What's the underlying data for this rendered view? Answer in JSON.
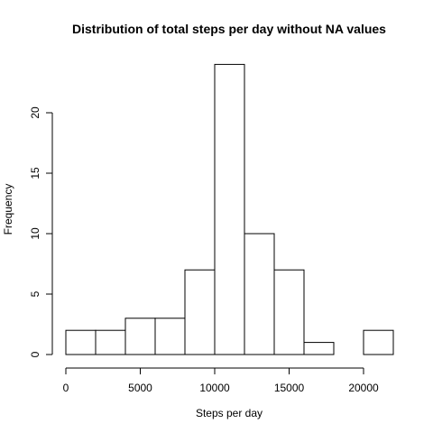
{
  "chart_data": {
    "type": "bar",
    "subtype": "histogram",
    "title": "Distribution of total steps per day without NA values",
    "xlabel": "Steps per day",
    "ylabel": "Frequency",
    "bins": [
      {
        "start": 0,
        "end": 2000,
        "count": 2
      },
      {
        "start": 2000,
        "end": 4000,
        "count": 2
      },
      {
        "start": 4000,
        "end": 6000,
        "count": 3
      },
      {
        "start": 6000,
        "end": 8000,
        "count": 3
      },
      {
        "start": 8000,
        "end": 10000,
        "count": 7
      },
      {
        "start": 10000,
        "end": 12000,
        "count": 24
      },
      {
        "start": 12000,
        "end": 14000,
        "count": 10
      },
      {
        "start": 14000,
        "end": 16000,
        "count": 7
      },
      {
        "start": 16000,
        "end": 18000,
        "count": 1
      },
      {
        "start": 18000,
        "end": 20000,
        "count": 0
      },
      {
        "start": 20000,
        "end": 22000,
        "count": 2
      }
    ],
    "xlim": [
      0,
      22000
    ],
    "ylim": [
      0,
      24
    ],
    "xticks": [
      0,
      5000,
      10000,
      15000,
      20000
    ],
    "xtick_labels": [
      "0",
      "5000",
      "10000",
      "15000",
      "20000"
    ],
    "yticks": [
      0,
      5,
      10,
      15,
      20
    ],
    "ytick_labels": [
      "0",
      "5",
      "10",
      "15",
      "20"
    ],
    "grid": false,
    "legend": "none",
    "colors": {
      "bar_fill": "#ffffff",
      "bar_stroke": "#000000"
    }
  }
}
